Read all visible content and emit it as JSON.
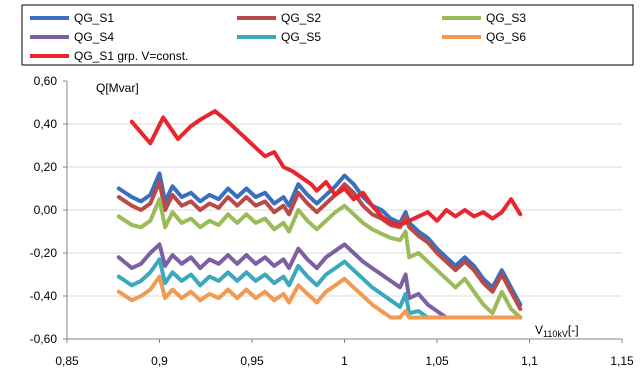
{
  "chart_data": {
    "type": "line",
    "title": "",
    "xlabel": "V",
    "xlabel_sub": "110kV",
    "xlabel_suffix": "[-]",
    "ylabel": "Q[Mvar]",
    "xlim": [
      0.85,
      1.15
    ],
    "ylim": [
      -0.6,
      0.6
    ],
    "xticks": [
      0.85,
      0.9,
      0.95,
      1.0,
      1.05,
      1.1,
      1.15
    ],
    "xtick_labels": [
      "0,85",
      "0,9",
      "0,95",
      "1",
      "1,05",
      "1,1",
      "1,15"
    ],
    "yticks": [
      0.6,
      0.4,
      0.2,
      0.0,
      -0.2,
      -0.4,
      -0.6
    ],
    "ytick_labels": [
      "0,60",
      "0,40",
      "0,20",
      "0,00",
      "-0,20",
      "-0,40",
      "-0,60"
    ],
    "grid": "horizontal",
    "legend_position": "top",
    "series": [
      {
        "name": "QG_S1",
        "color": "#3a6fbf",
        "x": [
          0.878,
          0.885,
          0.89,
          0.895,
          0.9,
          0.903,
          0.907,
          0.912,
          0.917,
          0.922,
          0.927,
          0.932,
          0.937,
          0.942,
          0.947,
          0.952,
          0.957,
          0.962,
          0.967,
          0.97,
          0.975,
          0.98,
          0.985,
          0.99,
          0.995,
          1.0,
          1.005,
          1.01,
          1.015,
          1.02,
          1.025,
          1.03,
          1.033,
          1.035,
          1.04,
          1.045,
          1.05,
          1.055,
          1.06,
          1.065,
          1.07,
          1.075,
          1.08,
          1.085,
          1.09,
          1.095
        ],
        "y": [
          0.1,
          0.06,
          0.04,
          0.07,
          0.17,
          0.04,
          0.11,
          0.06,
          0.08,
          0.04,
          0.07,
          0.05,
          0.1,
          0.06,
          0.1,
          0.06,
          0.08,
          0.03,
          0.06,
          0.02,
          0.12,
          0.07,
          0.03,
          0.07,
          0.11,
          0.16,
          0.12,
          0.06,
          0.02,
          0.0,
          -0.04,
          -0.06,
          -0.01,
          -0.06,
          -0.1,
          -0.13,
          -0.18,
          -0.22,
          -0.26,
          -0.22,
          -0.26,
          -0.32,
          -0.36,
          -0.28,
          -0.36,
          -0.44
        ]
      },
      {
        "name": "QG_S2",
        "color": "#b84a48",
        "x": [
          0.878,
          0.885,
          0.89,
          0.895,
          0.9,
          0.903,
          0.907,
          0.912,
          0.917,
          0.922,
          0.927,
          0.932,
          0.937,
          0.942,
          0.947,
          0.952,
          0.957,
          0.962,
          0.967,
          0.97,
          0.975,
          0.98,
          0.985,
          0.99,
          0.995,
          1.0,
          1.005,
          1.01,
          1.015,
          1.02,
          1.025,
          1.03,
          1.033,
          1.035,
          1.04,
          1.045,
          1.05,
          1.055,
          1.06,
          1.065,
          1.07,
          1.075,
          1.08,
          1.085,
          1.09,
          1.095
        ],
        "y": [
          0.06,
          0.02,
          0.0,
          0.03,
          0.13,
          0.0,
          0.07,
          0.02,
          0.04,
          0.0,
          0.03,
          0.01,
          0.06,
          0.02,
          0.06,
          0.02,
          0.04,
          -0.01,
          0.02,
          -0.02,
          0.08,
          0.03,
          -0.01,
          0.03,
          0.07,
          0.12,
          0.08,
          0.02,
          -0.02,
          -0.04,
          -0.07,
          -0.08,
          -0.03,
          -0.08,
          -0.12,
          -0.15,
          -0.2,
          -0.24,
          -0.28,
          -0.24,
          -0.28,
          -0.34,
          -0.38,
          -0.3,
          -0.38,
          -0.46
        ]
      },
      {
        "name": "QG_S3",
        "color": "#9bbb59",
        "x": [
          0.878,
          0.885,
          0.89,
          0.895,
          0.9,
          0.903,
          0.907,
          0.912,
          0.917,
          0.922,
          0.927,
          0.932,
          0.937,
          0.942,
          0.947,
          0.952,
          0.957,
          0.962,
          0.967,
          0.97,
          0.975,
          0.98,
          0.985,
          0.99,
          0.995,
          1.0,
          1.005,
          1.01,
          1.015,
          1.02,
          1.025,
          1.03,
          1.033,
          1.035,
          1.04,
          1.045,
          1.05,
          1.055,
          1.06,
          1.065,
          1.07,
          1.075,
          1.08,
          1.085,
          1.09,
          1.095
        ],
        "y": [
          -0.03,
          -0.07,
          -0.08,
          -0.05,
          0.05,
          -0.08,
          -0.01,
          -0.06,
          -0.04,
          -0.08,
          -0.05,
          -0.07,
          -0.02,
          -0.06,
          -0.02,
          -0.06,
          -0.04,
          -0.09,
          -0.06,
          -0.1,
          0.0,
          -0.05,
          -0.09,
          -0.05,
          -0.01,
          0.02,
          -0.02,
          -0.06,
          -0.09,
          -0.11,
          -0.13,
          -0.14,
          -0.1,
          -0.22,
          -0.2,
          -0.24,
          -0.28,
          -0.32,
          -0.36,
          -0.32,
          -0.38,
          -0.44,
          -0.48,
          -0.38,
          -0.46,
          -0.5
        ]
      },
      {
        "name": "QG_S4",
        "color": "#7d5fa3",
        "x": [
          0.878,
          0.885,
          0.89,
          0.895,
          0.9,
          0.903,
          0.907,
          0.912,
          0.917,
          0.922,
          0.927,
          0.932,
          0.937,
          0.942,
          0.947,
          0.952,
          0.957,
          0.962,
          0.967,
          0.97,
          0.975,
          0.98,
          0.985,
          0.99,
          0.995,
          1.0,
          1.005,
          1.01,
          1.015,
          1.02,
          1.025,
          1.03,
          1.033,
          1.035,
          1.04,
          1.045,
          1.05,
          1.055,
          1.06,
          1.065,
          1.07,
          1.075,
          1.08,
          1.085,
          1.09,
          1.095
        ],
        "y": [
          -0.22,
          -0.27,
          -0.25,
          -0.2,
          -0.16,
          -0.26,
          -0.21,
          -0.25,
          -0.22,
          -0.27,
          -0.23,
          -0.25,
          -0.21,
          -0.25,
          -0.21,
          -0.25,
          -0.22,
          -0.26,
          -0.23,
          -0.27,
          -0.18,
          -0.23,
          -0.27,
          -0.22,
          -0.19,
          -0.16,
          -0.2,
          -0.24,
          -0.27,
          -0.3,
          -0.33,
          -0.36,
          -0.3,
          -0.41,
          -0.39,
          -0.44,
          -0.47,
          -0.5,
          -0.5,
          -0.5,
          -0.5,
          -0.5,
          -0.5,
          -0.5,
          -0.5,
          -0.5
        ]
      },
      {
        "name": "QG_S5",
        "color": "#3aa9bd",
        "x": [
          0.878,
          0.885,
          0.89,
          0.895,
          0.9,
          0.903,
          0.907,
          0.912,
          0.917,
          0.922,
          0.927,
          0.932,
          0.937,
          0.942,
          0.947,
          0.952,
          0.957,
          0.962,
          0.967,
          0.97,
          0.975,
          0.98,
          0.985,
          0.99,
          0.995,
          1.0,
          1.005,
          1.01,
          1.015,
          1.02,
          1.025,
          1.03,
          1.033,
          1.035,
          1.04,
          1.045,
          1.05,
          1.055,
          1.06,
          1.065,
          1.07,
          1.075,
          1.08,
          1.085,
          1.09,
          1.095
        ],
        "y": [
          -0.31,
          -0.35,
          -0.33,
          -0.29,
          -0.23,
          -0.34,
          -0.29,
          -0.33,
          -0.3,
          -0.35,
          -0.31,
          -0.33,
          -0.29,
          -0.33,
          -0.29,
          -0.33,
          -0.3,
          -0.34,
          -0.31,
          -0.35,
          -0.26,
          -0.31,
          -0.35,
          -0.3,
          -0.27,
          -0.24,
          -0.28,
          -0.32,
          -0.36,
          -0.39,
          -0.42,
          -0.45,
          -0.39,
          -0.48,
          -0.47,
          -0.5,
          -0.5,
          -0.5,
          -0.5,
          -0.5,
          -0.5,
          -0.5,
          -0.5,
          -0.5,
          -0.5,
          -0.5
        ]
      },
      {
        "name": "QG_S6",
        "color": "#f39a52",
        "x": [
          0.878,
          0.885,
          0.89,
          0.895,
          0.9,
          0.903,
          0.907,
          0.912,
          0.917,
          0.922,
          0.927,
          0.932,
          0.937,
          0.942,
          0.947,
          0.952,
          0.957,
          0.962,
          0.967,
          0.97,
          0.975,
          0.98,
          0.985,
          0.99,
          0.995,
          1.0,
          1.005,
          1.01,
          1.015,
          1.02,
          1.025,
          1.03,
          1.033,
          1.035,
          1.04,
          1.045,
          1.05,
          1.055,
          1.06,
          1.065,
          1.07,
          1.075,
          1.08,
          1.085,
          1.09,
          1.095
        ],
        "y": [
          -0.38,
          -0.42,
          -0.4,
          -0.37,
          -0.31,
          -0.41,
          -0.37,
          -0.41,
          -0.38,
          -0.42,
          -0.39,
          -0.41,
          -0.37,
          -0.41,
          -0.37,
          -0.41,
          -0.38,
          -0.42,
          -0.39,
          -0.43,
          -0.35,
          -0.39,
          -0.43,
          -0.38,
          -0.35,
          -0.32,
          -0.36,
          -0.4,
          -0.44,
          -0.47,
          -0.5,
          -0.5,
          -0.47,
          -0.5,
          -0.5,
          -0.5,
          -0.5,
          -0.5,
          -0.5,
          -0.5,
          -0.5,
          -0.5,
          -0.5,
          -0.5,
          -0.5,
          -0.5
        ]
      },
      {
        "name": "QG_S1 grp. V=const.",
        "color": "#e8262d",
        "x": [
          0.885,
          0.895,
          0.902,
          0.91,
          0.917,
          0.922,
          0.93,
          0.937,
          0.942,
          0.947,
          0.952,
          0.957,
          0.962,
          0.967,
          0.972,
          0.977,
          0.982,
          0.985,
          0.99,
          0.995,
          1.0,
          1.005,
          1.01,
          1.015,
          1.02,
          1.025,
          1.03,
          1.035,
          1.04,
          1.045,
          1.05,
          1.055,
          1.06,
          1.065,
          1.07,
          1.075,
          1.08,
          1.085,
          1.09,
          1.095
        ],
        "y": [
          0.41,
          0.31,
          0.43,
          0.33,
          0.39,
          0.42,
          0.46,
          0.41,
          0.37,
          0.33,
          0.29,
          0.25,
          0.27,
          0.2,
          0.18,
          0.15,
          0.12,
          0.09,
          0.13,
          0.07,
          0.1,
          0.05,
          0.08,
          0.02,
          -0.03,
          -0.06,
          -0.07,
          -0.05,
          -0.03,
          -0.01,
          -0.05,
          0.0,
          -0.03,
          0.0,
          -0.03,
          -0.01,
          -0.04,
          -0.01,
          0.05,
          -0.02
        ]
      }
    ]
  }
}
